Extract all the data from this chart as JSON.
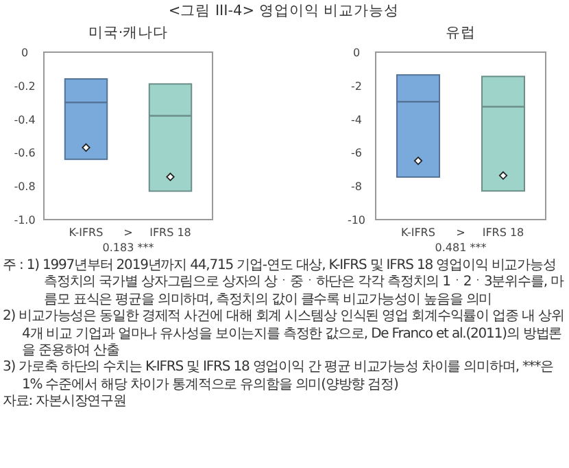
{
  "chart_data": [
    {
      "type": "box",
      "title": "미국·캐나다",
      "categories": [
        "K-IFRS",
        "IFRS 18"
      ],
      "colors": [
        "#7aaadc",
        "#9dd3c8"
      ],
      "marker": "diamond",
      "boxes": [
        {
          "low": -0.64,
          "q1": -0.64,
          "median": -0.3,
          "q3": -0.16,
          "high": -0.16,
          "mean": -0.57
        },
        {
          "low": -0.83,
          "q1": -0.83,
          "median": -0.38,
          "q3": -0.19,
          "high": -0.19,
          "mean": -0.745
        }
      ],
      "ylim": [
        -1,
        0
      ],
      "yticks": [
        {
          "value": -1,
          "label": "-1.0"
        },
        -0.8,
        -0.6,
        -0.4,
        -0.2,
        0
      ],
      "annotations": [
        ">",
        "0.183 ***"
      ]
    },
    {
      "type": "box",
      "title": "유럽",
      "categories": [
        "K-IFRS",
        "IFRS 18"
      ],
      "colors": [
        "#7aaadc",
        "#9dd3c8"
      ],
      "marker": "diamond",
      "boxes": [
        {
          "low": -7.46,
          "q1": -7.46,
          "median": -2.96,
          "q3": -1.36,
          "high": -1.36,
          "mean": -6.49
        },
        {
          "low": -8.29,
          "q1": -8.29,
          "median": -3.26,
          "q3": -1.45,
          "high": -1.45,
          "mean": -7.37
        }
      ],
      "ylim": [
        -10,
        0
      ],
      "yticks": [
        -10,
        -8,
        -6,
        -4,
        -2,
        0
      ],
      "annotations": [
        ">",
        "0.481 ***"
      ]
    },
    {
      "type": "other",
      "title": "<그림 III-4> 영업이익 비교가능성",
      "annotations": [
        "주 : 1) 1997년부터 2019년까지 44,715 기업-연도 대상, K-IFRS 및 IFRS 18 영업이익 비교가능성 측정치의 국가별 상자그림으로 상자의 상ㆍ중ㆍ하단은 각각 측정치의 1ㆍ2ㆍ3분위수를, 마름모 표식은 평균을 의미하며, 측정치의 값이 클수록 비교가능성이 높음을 의미",
        "2) 비교가능성은 동일한 경제적 사건에 대해 회계 시스템상 인식된 영업 회계수익률이 업종 내 상위 4개 비교 기업과 얼마나 유사성을 보이는지를 측정한 값으로, De Franco et al.(2011)의 방법론을 준용하여 산출",
        "3) 가로축 하단의 수치는 K-IFRS 및 IFRS 18 영업이익 간 평균 비교가능성 차이를 의미하며, ***은 1% 수준에서 해당 차이가 통계적으로 유의함을 의미(양방향 검정)",
        "자료: 자본시장연구원"
      ]
    }
  ]
}
